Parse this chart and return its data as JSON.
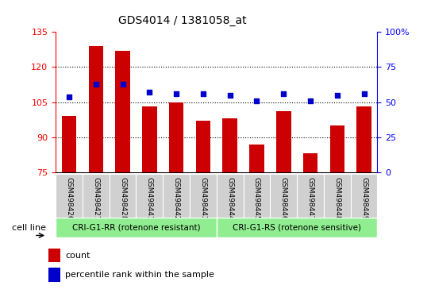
{
  "title": "GDS4014 / 1381058_at",
  "samples": [
    "GSM498426",
    "GSM498427",
    "GSM498428",
    "GSM498441",
    "GSM498442",
    "GSM498443",
    "GSM498444",
    "GSM498445",
    "GSM498446",
    "GSM498447",
    "GSM498448",
    "GSM498449"
  ],
  "counts": [
    99,
    129,
    127,
    103,
    105,
    97,
    98,
    87,
    101,
    83,
    95,
    103
  ],
  "percentiles": [
    54,
    63,
    63,
    57,
    56,
    56,
    55,
    51,
    56,
    51,
    55,
    56
  ],
  "group1_label": "CRI-G1-RR (rotenone resistant)",
  "group2_label": "CRI-G1-RS (rotenone sensitive)",
  "group1_count": 6,
  "group2_count": 6,
  "ylim_left": [
    75,
    135
  ],
  "ylim_right": [
    0,
    100
  ],
  "yticks_left": [
    75,
    90,
    105,
    120,
    135
  ],
  "yticks_right": [
    0,
    25,
    50,
    75,
    100
  ],
  "bar_color": "#cc0000",
  "dot_color": "#0000cc",
  "group_color": "#90ee90",
  "tick_bg": "#d0d0d0",
  "legend_count_label": "count",
  "legend_pct_label": "percentile rank within the sample",
  "grid_lines": [
    90,
    105,
    120
  ],
  "bar_width": 0.55
}
